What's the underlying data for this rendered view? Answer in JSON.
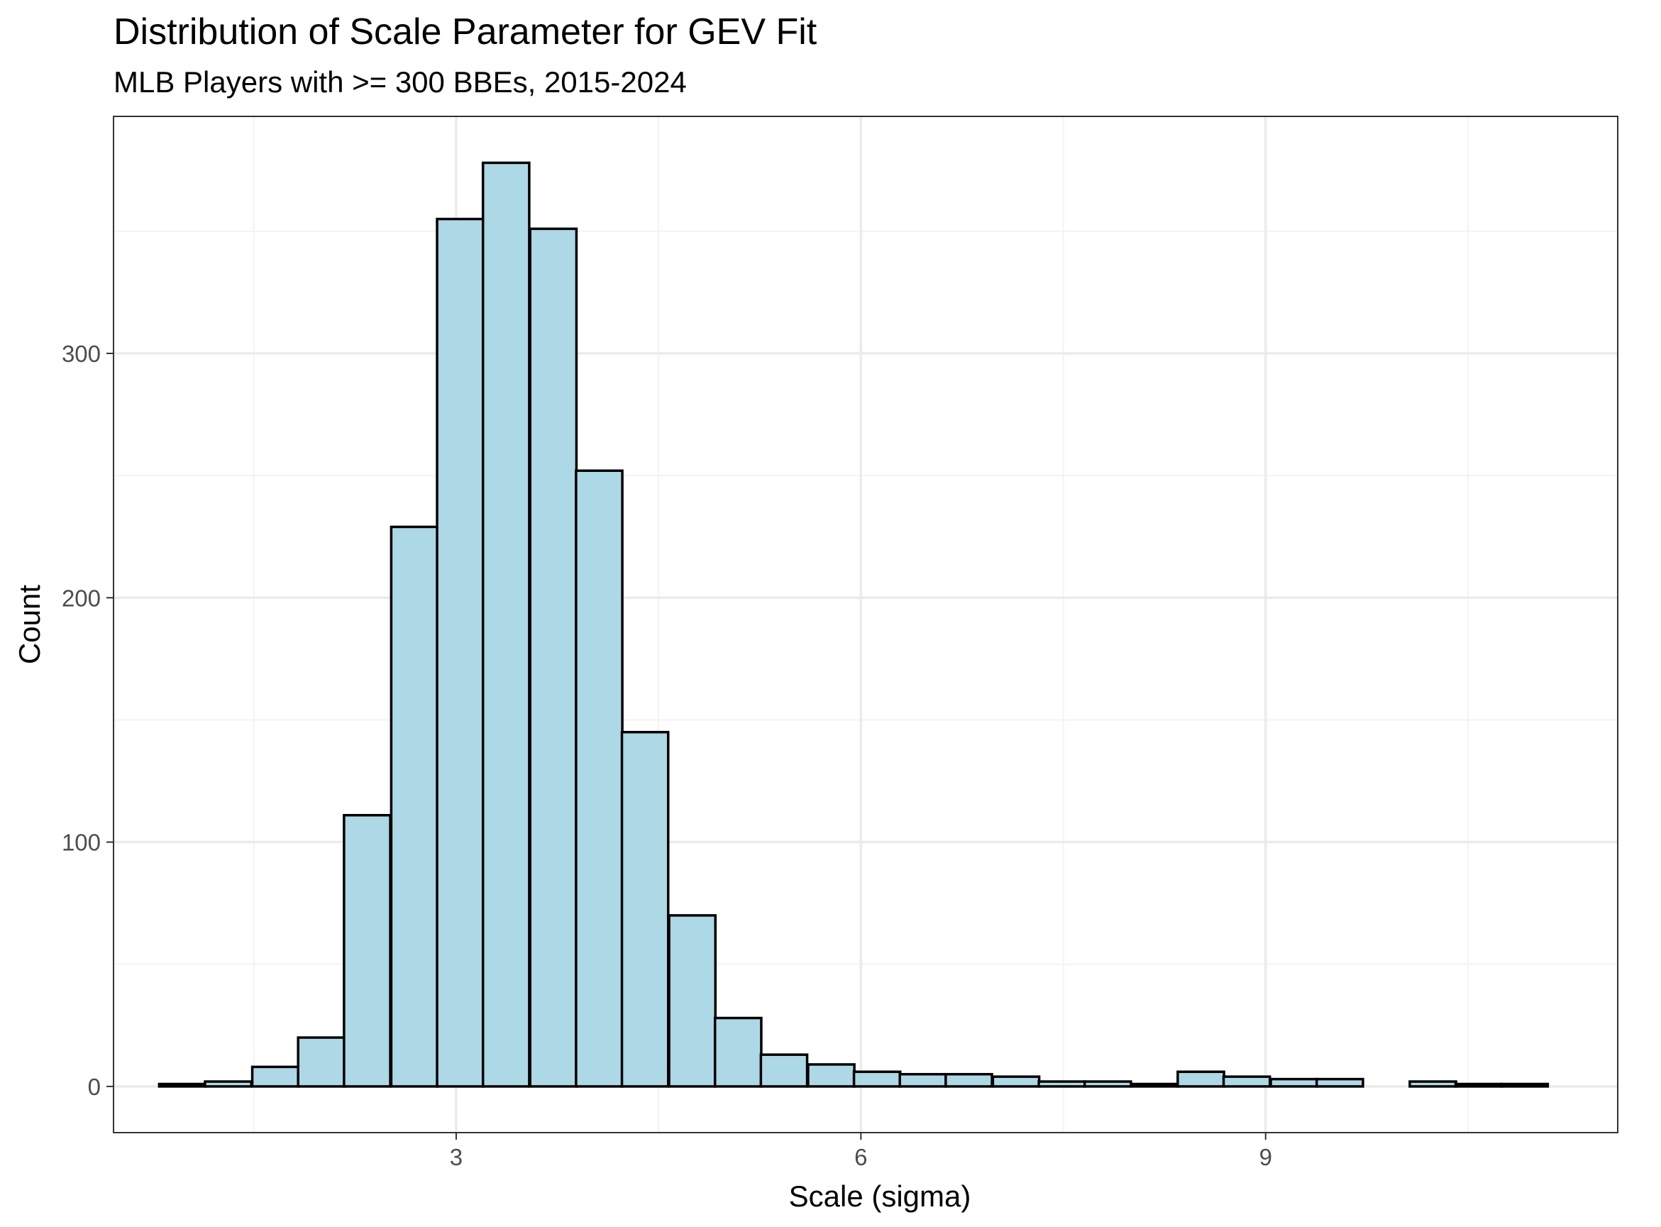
{
  "colors": {
    "bar_fill": "#add8e6",
    "bar_stroke": "#000000",
    "panel_border": "#333333",
    "grid_major": "#ebebeb",
    "grid_minor": "#f3f3f3",
    "background": "#ffffff"
  },
  "chart_data": {
    "type": "bar",
    "subtype": "histogram",
    "title": "Distribution of Scale Parameter for GEV Fit",
    "subtitle": "MLB Players with >= 300 BBEs, 2015-2024",
    "xlabel": "Scale (sigma)",
    "ylabel": "Count",
    "xlim": [
      0.46,
      11.61
    ],
    "ylim": [
      -18.9,
      397
    ],
    "x_ticks": [
      {
        "value": 3,
        "label": "3"
      },
      {
        "value": 6,
        "label": "6"
      },
      {
        "value": 9,
        "label": "9"
      }
    ],
    "y_ticks": [
      {
        "value": 0,
        "label": "0"
      },
      {
        "value": 100,
        "label": "100"
      },
      {
        "value": 200,
        "label": "200"
      },
      {
        "value": 300,
        "label": "300"
      }
    ],
    "x_minor_gridlines": [
      1.5,
      4.5,
      7.5,
      10.5
    ],
    "y_minor_gridlines": [
      50,
      150,
      250,
      350
    ],
    "grid": true,
    "legend": "none",
    "bin_width": 0.343,
    "bins": [
      {
        "x_center": 0.97,
        "count": 1
      },
      {
        "x_center": 1.31,
        "count": 2
      },
      {
        "x_center": 1.66,
        "count": 8
      },
      {
        "x_center": 2.0,
        "count": 20
      },
      {
        "x_center": 2.34,
        "count": 111
      },
      {
        "x_center": 2.69,
        "count": 229
      },
      {
        "x_center": 3.03,
        "count": 355
      },
      {
        "x_center": 3.37,
        "count": 378
      },
      {
        "x_center": 3.72,
        "count": 351
      },
      {
        "x_center": 4.06,
        "count": 252
      },
      {
        "x_center": 4.4,
        "count": 145
      },
      {
        "x_center": 4.75,
        "count": 70
      },
      {
        "x_center": 5.09,
        "count": 28
      },
      {
        "x_center": 5.43,
        "count": 13
      },
      {
        "x_center": 5.78,
        "count": 9
      },
      {
        "x_center": 6.12,
        "count": 6
      },
      {
        "x_center": 6.46,
        "count": 5
      },
      {
        "x_center": 6.8,
        "count": 5
      },
      {
        "x_center": 7.15,
        "count": 4
      },
      {
        "x_center": 7.49,
        "count": 2
      },
      {
        "x_center": 7.83,
        "count": 2
      },
      {
        "x_center": 8.18,
        "count": 1
      },
      {
        "x_center": 8.52,
        "count": 6
      },
      {
        "x_center": 8.86,
        "count": 4
      },
      {
        "x_center": 9.21,
        "count": 3
      },
      {
        "x_center": 9.55,
        "count": 3
      },
      {
        "x_center": 9.89,
        "count": 0
      },
      {
        "x_center": 10.24,
        "count": 2
      },
      {
        "x_center": 10.58,
        "count": 1
      },
      {
        "x_center": 10.92,
        "count": 1
      }
    ]
  }
}
